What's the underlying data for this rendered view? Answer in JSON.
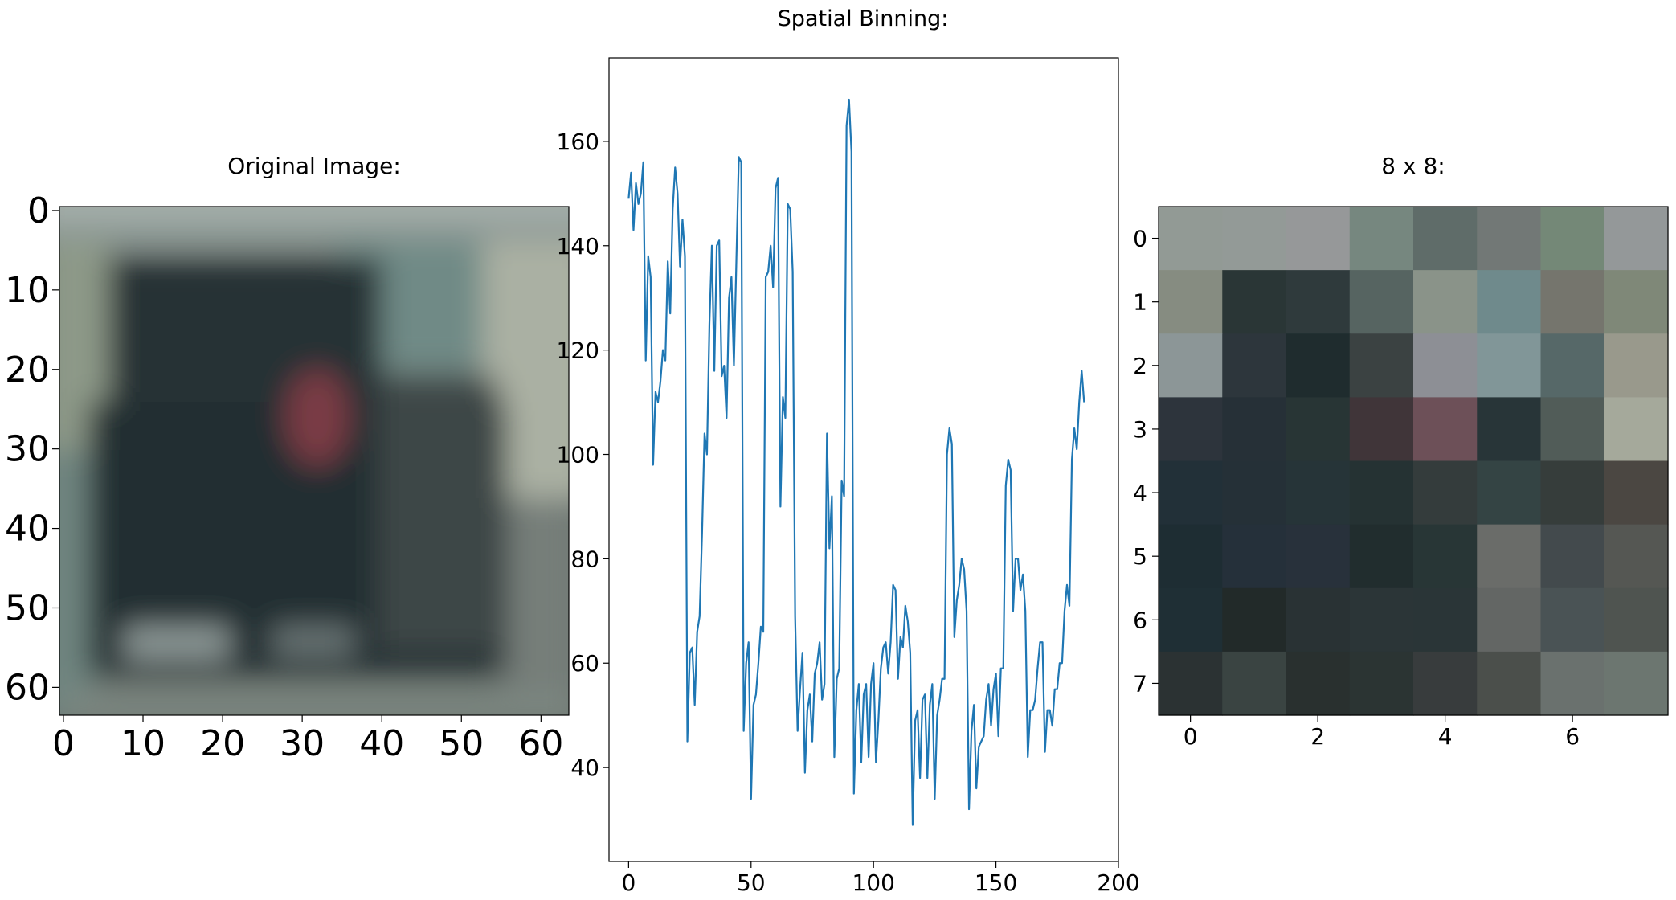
{
  "figure": {
    "suptitle": "Spatial Binning:",
    "background": "#ffffff"
  },
  "panels": {
    "original": {
      "title": "Original Image:",
      "x_ticks": [
        "0",
        "10",
        "20",
        "30",
        "40",
        "50",
        "60"
      ],
      "y_ticks": [
        "0",
        "10",
        "20",
        "30",
        "40",
        "50",
        "60"
      ]
    },
    "binned": {
      "title": "8 x 8:",
      "x_ticks": [
        "0",
        "2",
        "4",
        "6"
      ],
      "y_ticks": [
        "0",
        "1",
        "2",
        "3",
        "4",
        "5",
        "6",
        "7"
      ]
    }
  },
  "chart_data": [
    {
      "type": "heatmap",
      "image_size": [
        64,
        64
      ],
      "title": "Original Image:",
      "xlim": [
        -0.5,
        63.5
      ],
      "ylim": [
        63.5,
        -0.5
      ],
      "x_ticks": [
        0,
        10,
        20,
        30,
        40,
        50,
        60
      ],
      "y_ticks": [
        0,
        10,
        20,
        30,
        40,
        50,
        60
      ],
      "grid": false
    },
    {
      "type": "line",
      "title": "",
      "xlim": [
        -8,
        200
      ],
      "ylim": [
        22,
        176
      ],
      "x_ticks": [
        0,
        50,
        100,
        150,
        200
      ],
      "y_ticks": [
        40,
        60,
        80,
        100,
        120,
        140,
        160
      ],
      "grid": false,
      "series": [
        {
          "color": "#1f77b4",
          "x_step": 1,
          "values": [
            149,
            154,
            143,
            152,
            148,
            150,
            156,
            118,
            138,
            134,
            98,
            112,
            110,
            114,
            120,
            118,
            137,
            127,
            147,
            155,
            150,
            136,
            145,
            138,
            45,
            62,
            63,
            52,
            66,
            69,
            85,
            104,
            100,
            125,
            140,
            116,
            140,
            141,
            115,
            117,
            107,
            130,
            134,
            117,
            137,
            157,
            156,
            47,
            60,
            64,
            34,
            52,
            54,
            60,
            67,
            66,
            134,
            135,
            140,
            132,
            151,
            153,
            90,
            111,
            107,
            148,
            147,
            135,
            69,
            47,
            55,
            62,
            39,
            51,
            54,
            45,
            58,
            60,
            64,
            53,
            56,
            104,
            82,
            92,
            42,
            57,
            59,
            95,
            92,
            163,
            168,
            158,
            35,
            51,
            56,
            41,
            54,
            56,
            42,
            56,
            60,
            41,
            49,
            59,
            63,
            64,
            58,
            64,
            75,
            74,
            57,
            65,
            63,
            71,
            68,
            62,
            29,
            49,
            51,
            38,
            53,
            54,
            38,
            52,
            56,
            34,
            50,
            53,
            57,
            57,
            100,
            105,
            102,
            65,
            72,
            75,
            80,
            78,
            70,
            32,
            47,
            52,
            36,
            44,
            45,
            46,
            53,
            56,
            48,
            55,
            58,
            46,
            59,
            59,
            94,
            99,
            97,
            70,
            80,
            80,
            74,
            77,
            70,
            42,
            51,
            51,
            53,
            59,
            64,
            64,
            43,
            51,
            51,
            48,
            55,
            55,
            60,
            60,
            70,
            75,
            71,
            99,
            105,
            101,
            110,
            116,
            110
          ]
        }
      ]
    },
    {
      "type": "heatmap",
      "title": "8 x 8:",
      "rows": 8,
      "cols": 8,
      "x_ticks": [
        0,
        2,
        4,
        6
      ],
      "y_ticks": [
        0,
        1,
        2,
        3,
        4,
        5,
        6,
        7
      ],
      "colors": [
        [
          "#929a95",
          "#939a97",
          "#969899",
          "#76877f",
          "#5f6c69",
          "#727876",
          "#748877",
          "#949899"
        ],
        [
          "#868c81",
          "#2a3636",
          "#2f3a3c",
          "#566461",
          "#8a9389",
          "#6f8a8c",
          "#75756d",
          "#7f8878"
        ],
        [
          "#8c9697",
          "#2d363c",
          "#1f2c2e",
          "#3b4242",
          "#8d8f95",
          "#819698",
          "#566868",
          "#99998c"
        ],
        [
          "#2d343c",
          "#263037",
          "#283535",
          "#403539",
          "#6d5058",
          "#283538",
          "#515c58",
          "#a5a99b"
        ],
        [
          "#223038",
          "#253037",
          "#263438",
          "#253233",
          "#343c3c",
          "#344444",
          "#363d3b",
          "#4b4742"
        ],
        [
          "#1e2d33",
          "#25303a",
          "#28313b",
          "#212d2e",
          "#283636",
          "#6a6c69",
          "#434a4d",
          "#555753"
        ],
        [
          "#1f2f35",
          "#222a29",
          "#293234",
          "#2b3537",
          "#2a3537",
          "#636664",
          "#4a5355",
          "#4f5450"
        ],
        [
          "#2b3233",
          "#3a4442",
          "#29302f",
          "#2b3433",
          "#383c3d",
          "#4b4f4b",
          "#6a716e",
          "#6c7670"
        ]
      ]
    }
  ]
}
